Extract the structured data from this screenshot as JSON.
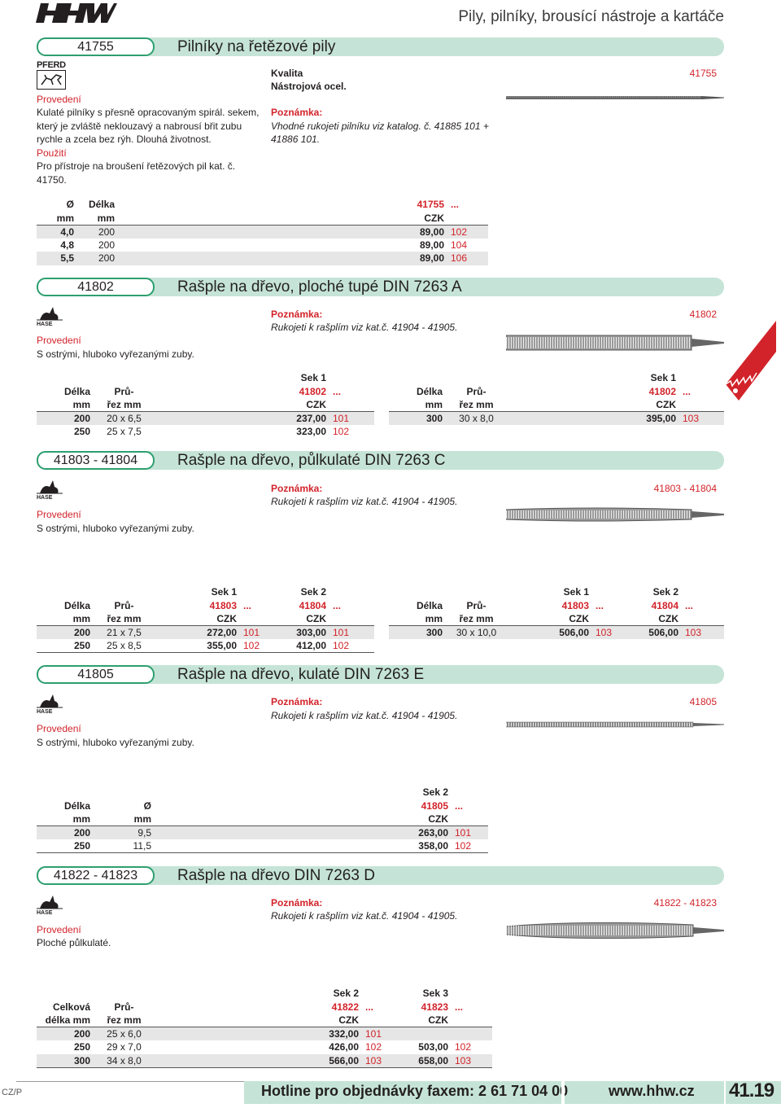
{
  "header": {
    "brand": "HHW",
    "category": "Pily, pilníky, brousící nástroje a kartáče"
  },
  "s1": {
    "code": "41755",
    "title": "Pilníky na řetězové pily",
    "brand": "PFERD",
    "provedeni_h": "Provedení",
    "provedeni": [
      "Kulaté pilníky s přesně opracovaným spirál. sekem,",
      "který je zvláště neklouzavý a nabrousí břit zubu",
      "rychle a zcela bez rýh. Dlouhá životnost."
    ],
    "pouziti_h": "Použití",
    "pouziti": [
      "Pro přístroje na broušení řetězových pil kat. č.",
      "41750."
    ],
    "kvalita_h": "Kvalita",
    "kvalita": "Nástrojová ocel.",
    "poznamka_h": "Poznámka:",
    "poznamka": [
      "Vhodné rukojeti pilníku viz katalog. č. 41885 101 +",
      "41886 101."
    ],
    "img_code": "41755",
    "table": {
      "h1": [
        "Ø",
        "Délka",
        "41755",
        "..."
      ],
      "h2": [
        "mm",
        "mm",
        "CZK",
        ""
      ],
      "rows": [
        [
          "4,0",
          "200",
          "89,00",
          "102"
        ],
        [
          "4,8",
          "200",
          "89,00",
          "104"
        ],
        [
          "5,5",
          "200",
          "89,00",
          "106"
        ]
      ]
    }
  },
  "s2": {
    "code": "41802",
    "title": "Rašple na dřevo, ploché tupé DIN 7263 A",
    "brand": "HASE",
    "provedeni_h": "Provedení",
    "provedeni": "S ostrými, hluboko vyřezanými zuby.",
    "poznamka_h": "Poznámka:",
    "poznamka": "Rukojeti k rašplím viz kat.č. 41904 - 41905.",
    "img_code": "41802",
    "tA": {
      "sek": "Sek 1",
      "h1": [
        "Délka",
        "Prů-",
        "41802",
        "..."
      ],
      "h2": [
        "mm",
        "řez mm",
        "CZK",
        ""
      ],
      "rows": [
        [
          "200",
          "20 x 6,5",
          "237,00",
          "101"
        ],
        [
          "250",
          "25 x 7,5",
          "323,00",
          "102"
        ]
      ]
    },
    "tB": {
      "sek": "Sek 1",
      "h1": [
        "Délka",
        "Prů-",
        "41802",
        "..."
      ],
      "h2": [
        "mm",
        "řez mm",
        "CZK",
        ""
      ],
      "rows": [
        [
          "300",
          "30 x 8,0",
          "395,00",
          "103"
        ]
      ]
    }
  },
  "s3": {
    "code": "41803 - 41804",
    "title": "Rašple na dřevo, půlkulaté DIN 7263 C",
    "brand": "HASE",
    "provedeni_h": "Provedení",
    "provedeni": "S ostrými, hluboko vyřezanými zuby.",
    "poznamka_h": "Poznámka:",
    "poznamka": "Rukojeti k rašplím viz kat.č. 41904 - 41905.",
    "img_code": "41803 - 41804",
    "tA": {
      "sek1": "Sek 1",
      "sek2": "Sek 2",
      "h1": [
        "Délka",
        "Prů-",
        "41803",
        "...",
        "41804",
        "..."
      ],
      "h2": [
        "mm",
        "řez mm",
        "CZK",
        "",
        "CZK",
        ""
      ],
      "rows": [
        [
          "200",
          "21 x 7,5",
          "272,00",
          "101",
          "303,00",
          "101"
        ],
        [
          "250",
          "25 x 8,5",
          "355,00",
          "102",
          "412,00",
          "102"
        ]
      ]
    },
    "tB": {
      "sek1": "Sek 1",
      "sek2": "Sek 2",
      "h1": [
        "Délka",
        "Prů-",
        "41803",
        "...",
        "41804",
        "..."
      ],
      "h2": [
        "mm",
        "řez mm",
        "CZK",
        "",
        "CZK",
        ""
      ],
      "rows": [
        [
          "300",
          "30 x 10,0",
          "506,00",
          "103",
          "506,00",
          "103"
        ]
      ]
    }
  },
  "s4": {
    "code": "41805",
    "title": "Rašple na dřevo, kulaté DIN 7263 E",
    "brand": "HASE",
    "provedeni_h": "Provedení",
    "provedeni": "S ostrými, hluboko vyřezanými zuby.",
    "poznamka_h": "Poznámka:",
    "poznamka": "Rukojeti k rašplím viz kat.č. 41904 - 41905.",
    "img_code": "41805",
    "table": {
      "sek": "Sek 2",
      "h1": [
        "Délka",
        "Ø",
        "41805",
        "..."
      ],
      "h2": [
        "mm",
        "mm",
        "CZK",
        ""
      ],
      "rows": [
        [
          "200",
          "9,5",
          "263,00",
          "101"
        ],
        [
          "250",
          "11,5",
          "358,00",
          "102"
        ]
      ]
    }
  },
  "s5": {
    "code": "41822 - 41823",
    "title": "Rašple na dřevo DIN 7263 D",
    "brand": "HASE",
    "provedeni_h": "Provedení",
    "provedeni": "Ploché půlkulaté.",
    "poznamka_h": "Poznámka:",
    "poznamka": "Rukojeti k rašplím viz kat.č. 41904 - 41905.",
    "img_code": "41822 - 41823",
    "table": {
      "sek1": "Sek 2",
      "sek2": "Sek 3",
      "h1": [
        "Celková",
        "Prů-",
        "41822",
        "...",
        "41823",
        "..."
      ],
      "h2": [
        "délka mm",
        "řez mm",
        "CZK",
        "",
        "CZK",
        ""
      ],
      "rows": [
        [
          "200",
          "25 x 6,0",
          "332,00",
          "101",
          "",
          ""
        ],
        [
          "250",
          "29 x 7,0",
          "426,00",
          "102",
          "503,00",
          "102"
        ],
        [
          "300",
          "34 x 8,0",
          "566,00",
          "103",
          "658,00",
          "103"
        ]
      ]
    }
  },
  "footer": {
    "lang": "CZ/P",
    "hotline": "Hotline pro objednávky faxem: 2 61 71 04 00",
    "web": "www.hhw.cz",
    "page": "41.19"
  }
}
